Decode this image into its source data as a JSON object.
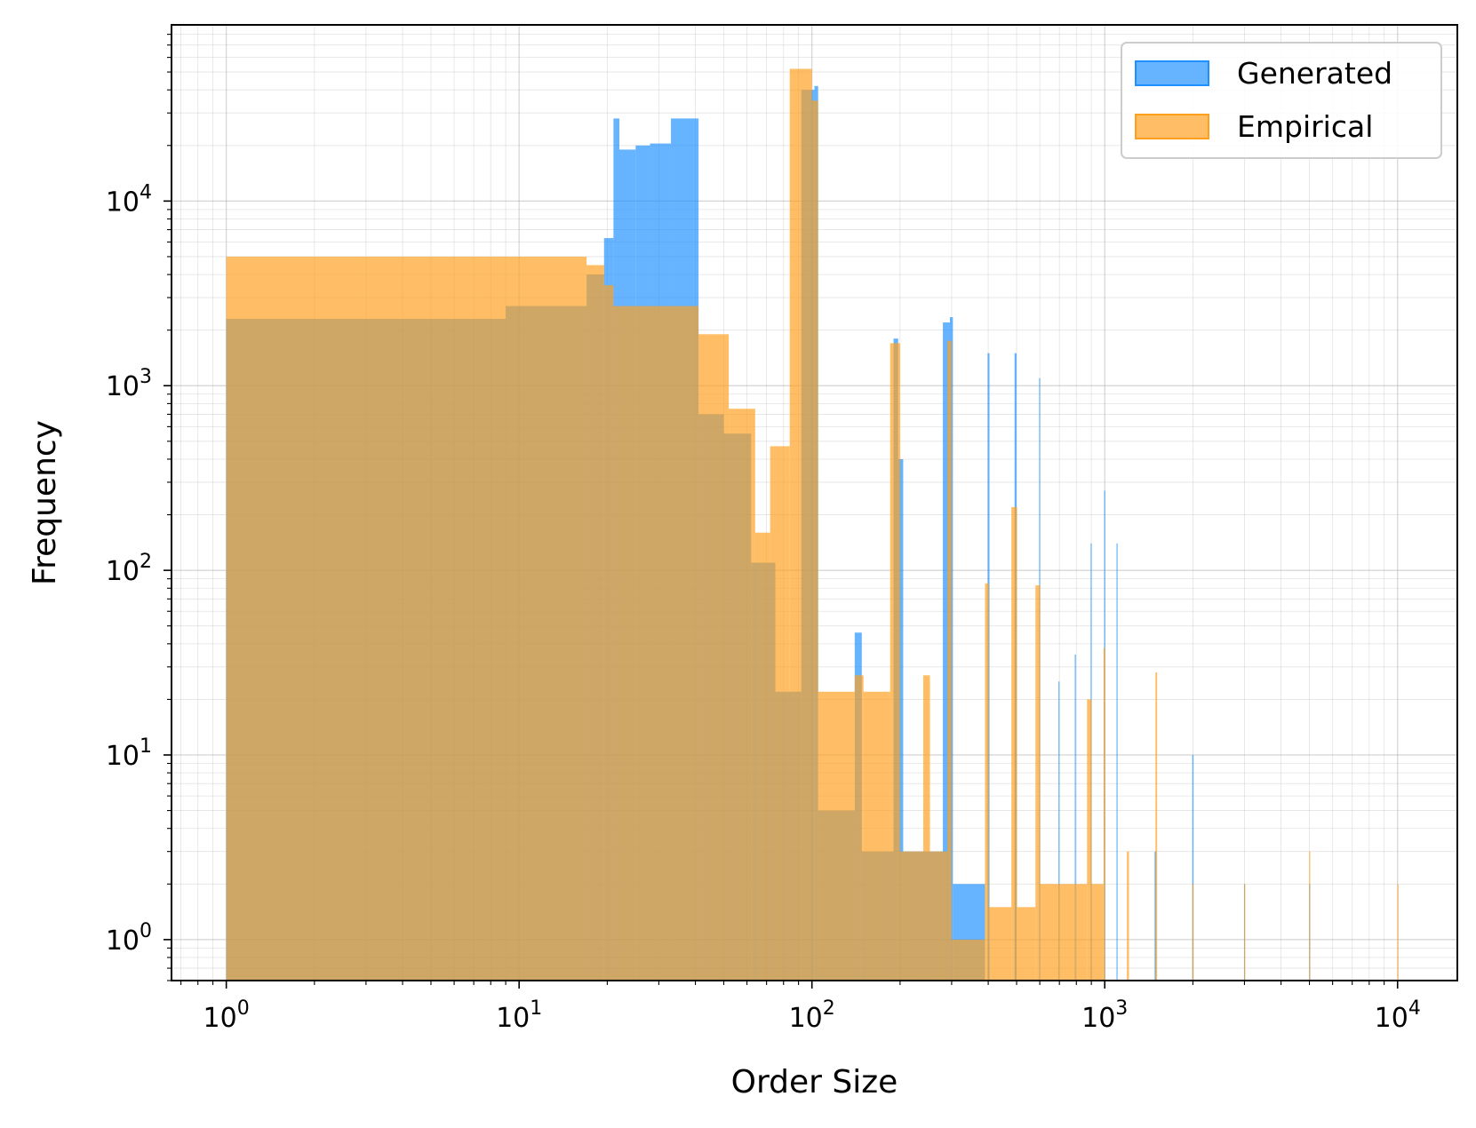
{
  "chart_data": {
    "type": "bar",
    "title": "",
    "xlabel": "Order Size",
    "ylabel": "Frequency",
    "xscale": "log",
    "yscale": "log",
    "xlim": [
      0.65,
      16000
    ],
    "ylim": [
      0.6,
      90000
    ],
    "grid": "both (major and minor)",
    "legend_position": "top-right",
    "x_ticks": [
      {
        "base": "10",
        "exp": "0",
        "value": 1
      },
      {
        "base": "10",
        "exp": "1",
        "value": 10
      },
      {
        "base": "10",
        "exp": "2",
        "value": 100
      },
      {
        "base": "10",
        "exp": "3",
        "value": 1000
      },
      {
        "base": "10",
        "exp": "4",
        "value": 10000
      }
    ],
    "y_ticks": [
      {
        "base": "10",
        "exp": "0",
        "value": 1
      },
      {
        "base": "10",
        "exp": "1",
        "value": 10
      },
      {
        "base": "10",
        "exp": "2",
        "value": 100
      },
      {
        "base": "10",
        "exp": "3",
        "value": 1000
      },
      {
        "base": "10",
        "exp": "4",
        "value": 10000
      }
    ],
    "series": [
      {
        "name": "Generated",
        "color": "#1E90FF",
        "opacity": 0.68,
        "bins": [
          {
            "x0": 1,
            "x1": 9,
            "y": 2300
          },
          {
            "x0": 9,
            "x1": 17,
            "y": 2700
          },
          {
            "x0": 17,
            "x1": 19.5,
            "y": 4000
          },
          {
            "x0": 19.5,
            "x1": 21,
            "y": 6300
          },
          {
            "x0": 21,
            "x1": 22,
            "y": 28000
          },
          {
            "x0": 22,
            "x1": 25,
            "y": 19000
          },
          {
            "x0": 25,
            "x1": 28,
            "y": 20000
          },
          {
            "x0": 28,
            "x1": 33,
            "y": 20500
          },
          {
            "x0": 33,
            "x1": 41,
            "y": 28000
          },
          {
            "x0": 41,
            "x1": 50,
            "y": 700
          },
          {
            "x0": 50,
            "x1": 62,
            "y": 550
          },
          {
            "x0": 62,
            "x1": 75,
            "y": 110
          },
          {
            "x0": 75,
            "x1": 92,
            "y": 22
          },
          {
            "x0": 92,
            "x1": 102,
            "y": 40000
          },
          {
            "x0": 102,
            "x1": 105,
            "y": 42000
          },
          {
            "x0": 105,
            "x1": 140,
            "y": 5
          },
          {
            "x0": 140,
            "x1": 148,
            "y": 46
          },
          {
            "x0": 148,
            "x1": 190,
            "y": 3
          },
          {
            "x0": 190,
            "x1": 197,
            "y": 1800
          },
          {
            "x0": 197,
            "x1": 205,
            "y": 400
          },
          {
            "x0": 205,
            "x1": 280,
            "y": 3
          },
          {
            "x0": 280,
            "x1": 296,
            "y": 2200
          },
          {
            "x0": 296,
            "x1": 303,
            "y": 2350
          },
          {
            "x0": 303,
            "x1": 390,
            "y": 2
          },
          {
            "x0": 398,
            "x1": 404,
            "y": 1500
          },
          {
            "x0": 492,
            "x1": 500,
            "y": 1500
          },
          {
            "x0": 597,
            "x1": 602,
            "y": 1100
          },
          {
            "x0": 695,
            "x1": 700,
            "y": 25
          },
          {
            "x0": 790,
            "x1": 797,
            "y": 35
          },
          {
            "x0": 895,
            "x1": 900,
            "y": 140
          },
          {
            "x0": 995,
            "x1": 1000,
            "y": 270
          },
          {
            "x0": 1097,
            "x1": 1102,
            "y": 140
          },
          {
            "x0": 1480,
            "x1": 1500,
            "y": 3
          },
          {
            "x0": 1990,
            "x1": 2010,
            "y": 10
          },
          {
            "x0": 2990,
            "x1": 3010,
            "y": 2
          },
          {
            "x0": 4990,
            "x1": 5010,
            "y": 2
          }
        ]
      },
      {
        "name": "Empirical",
        "color": "#FF9F1C",
        "opacity": 0.68,
        "bins": [
          {
            "x0": 1,
            "x1": 17,
            "y": 5000
          },
          {
            "x0": 17,
            "x1": 19.5,
            "y": 4500
          },
          {
            "x0": 19.5,
            "x1": 21,
            "y": 3500
          },
          {
            "x0": 21,
            "x1": 41,
            "y": 2700
          },
          {
            "x0": 41,
            "x1": 52,
            "y": 1900
          },
          {
            "x0": 52,
            "x1": 64,
            "y": 750
          },
          {
            "x0": 64,
            "x1": 72,
            "y": 160
          },
          {
            "x0": 72,
            "x1": 84,
            "y": 470
          },
          {
            "x0": 84,
            "x1": 100,
            "y": 52000
          },
          {
            "x0": 100,
            "x1": 105,
            "y": 35000
          },
          {
            "x0": 105,
            "x1": 140,
            "y": 22
          },
          {
            "x0": 140,
            "x1": 150,
            "y": 27
          },
          {
            "x0": 150,
            "x1": 185,
            "y": 22
          },
          {
            "x0": 185,
            "x1": 200,
            "y": 1700
          },
          {
            "x0": 200,
            "x1": 240,
            "y": 3
          },
          {
            "x0": 240,
            "x1": 253,
            "y": 27
          },
          {
            "x0": 253,
            "x1": 290,
            "y": 3
          },
          {
            "x0": 290,
            "x1": 300,
            "y": 1750
          },
          {
            "x0": 300,
            "x1": 390,
            "y": 1
          },
          {
            "x0": 390,
            "x1": 402,
            "y": 85
          },
          {
            "x0": 402,
            "x1": 480,
            "y": 1.5
          },
          {
            "x0": 480,
            "x1": 502,
            "y": 220
          },
          {
            "x0": 502,
            "x1": 580,
            "y": 1.5
          },
          {
            "x0": 580,
            "x1": 602,
            "y": 83
          },
          {
            "x0": 602,
            "x1": 870,
            "y": 2
          },
          {
            "x0": 870,
            "x1": 902,
            "y": 20
          },
          {
            "x0": 902,
            "x1": 990,
            "y": 2
          },
          {
            "x0": 990,
            "x1": 1003,
            "y": 38
          },
          {
            "x0": 1190,
            "x1": 1210,
            "y": 3
          },
          {
            "x0": 1490,
            "x1": 1510,
            "y": 28
          },
          {
            "x0": 1990,
            "x1": 2010,
            "y": 2
          },
          {
            "x0": 2990,
            "x1": 3010,
            "y": 2
          },
          {
            "x0": 4990,
            "x1": 5010,
            "y": 3
          },
          {
            "x0": 9990,
            "x1": 10010,
            "y": 2
          }
        ]
      }
    ]
  }
}
